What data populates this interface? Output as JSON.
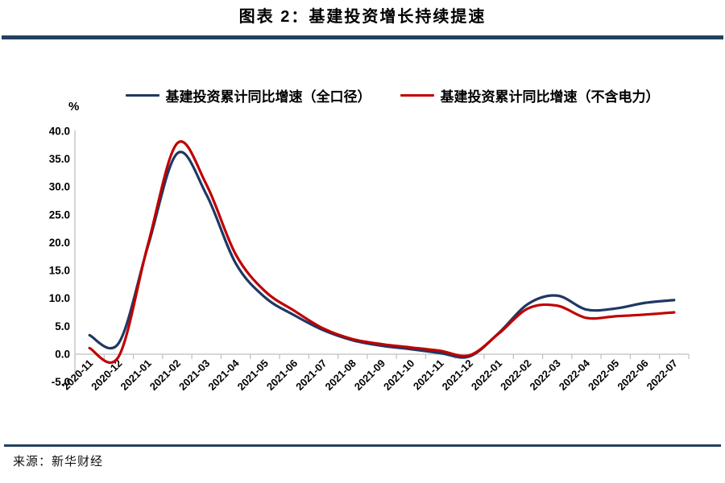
{
  "header": {
    "title": "图表 2：基建投资增长持续提速"
  },
  "footer": {
    "source": "来源：新华财经"
  },
  "colors": {
    "rule": "#24415e",
    "axis": "#bfbfbf",
    "series_full": "#1f3864",
    "series_excl": "#c00000"
  },
  "chart_data": {
    "type": "line",
    "title": "图表 2：基建投资增长持续提速",
    "ylabel": "%",
    "ylim": [
      -5,
      40
    ],
    "ytick_step": 5,
    "ytick_labels": [
      "40.0",
      "35.0",
      "30.0",
      "25.0",
      "20.0",
      "15.0",
      "10.0",
      "5.0",
      "0.0",
      "-5.0"
    ],
    "grid": false,
    "smooth": true,
    "legend_position": "top",
    "categories": [
      "2020-11",
      "2020-12",
      "2021-01",
      "2021-02",
      "2021-03",
      "2021-04",
      "2021-05",
      "2021-06",
      "2021-07",
      "2021-08",
      "2021-09",
      "2021-10",
      "2021-11",
      "2021-12",
      "2022-01",
      "2022-02",
      "2022-03",
      "2022-04",
      "2022-05",
      "2022-06",
      "2022-07"
    ],
    "series": [
      {
        "name": "基建投资累计同比增速（全口径）",
        "color": "#1f3864",
        "values": [
          3.4,
          2.0,
          19.4,
          36.0,
          28.6,
          16.3,
          10.2,
          7.0,
          4.3,
          2.5,
          1.5,
          0.9,
          0.2,
          -0.4,
          3.8,
          9.0,
          10.5,
          8.0,
          8.2,
          9.2,
          9.7
        ]
      },
      {
        "name": "基建投资累计同比增速（不含电力）",
        "color": "#c00000",
        "values": [
          1.1,
          -0.4,
          19.7,
          37.8,
          30.4,
          17.9,
          11.3,
          7.8,
          4.6,
          2.7,
          1.8,
          1.2,
          0.6,
          -0.2,
          3.7,
          8.2,
          8.7,
          6.5,
          6.8,
          7.1,
          7.5
        ]
      }
    ]
  }
}
